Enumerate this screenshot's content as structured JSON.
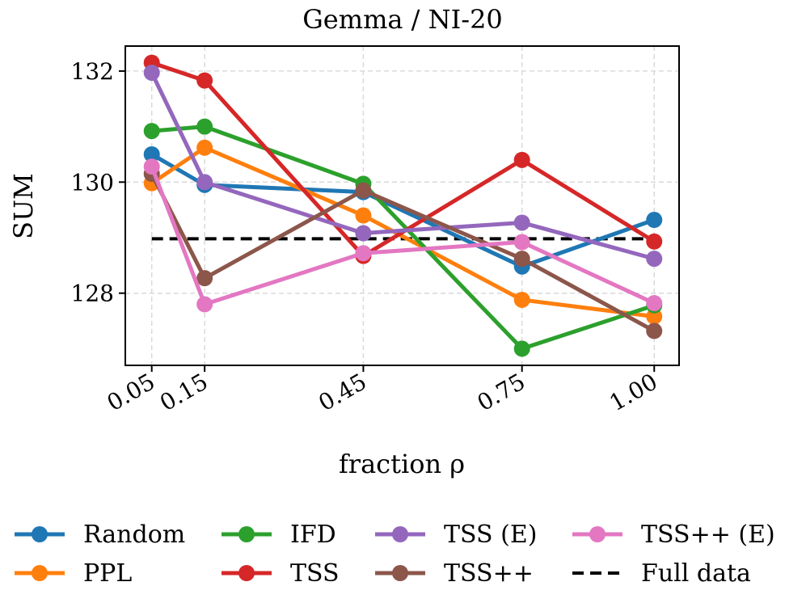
{
  "chart_data": {
    "type": "line",
    "title": "Gemma / NI-20",
    "xlabel": "fraction ρ",
    "ylabel": "SUM",
    "x": [
      0.05,
      0.15,
      0.45,
      0.75,
      1.0
    ],
    "x_tick_labels": [
      "0.05",
      "0.15",
      "0.45",
      "0.75",
      "1.00"
    ],
    "y_ticks": [
      128,
      130,
      132
    ],
    "y_tick_labels": [
      "128",
      "130",
      "132"
    ],
    "xlim": [
      0.0,
      1.047
    ],
    "ylim": [
      126.7,
      132.45
    ],
    "grid": true,
    "legend_position": "bottom",
    "series": [
      {
        "name": "Random",
        "color": "#1f77b4",
        "values": [
          130.5,
          129.95,
          129.82,
          128.48,
          129.32
        ]
      },
      {
        "name": "PPL",
        "color": "#ff7f0e",
        "values": [
          129.98,
          130.62,
          129.4,
          127.88,
          127.58
        ]
      },
      {
        "name": "IFD",
        "color": "#2ca02c",
        "values": [
          130.92,
          131.0,
          129.97,
          127.0,
          127.78
        ]
      },
      {
        "name": "TSS",
        "color": "#d62728",
        "values": [
          132.15,
          131.83,
          128.67,
          130.4,
          128.93
        ]
      },
      {
        "name": "TSS (E)",
        "color": "#9467bd",
        "values": [
          131.97,
          130.0,
          129.08,
          129.27,
          128.62
        ]
      },
      {
        "name": "TSS++",
        "color": "#8c564b",
        "values": [
          130.15,
          128.27,
          129.85,
          128.62,
          127.32
        ]
      },
      {
        "name": "TSS++ (E)",
        "color": "#e377c2",
        "values": [
          130.28,
          127.8,
          128.72,
          128.92,
          127.82
        ]
      }
    ],
    "reference_line": {
      "name": "Full data",
      "value": 128.98,
      "color": "#000000",
      "style": "dashed"
    }
  }
}
